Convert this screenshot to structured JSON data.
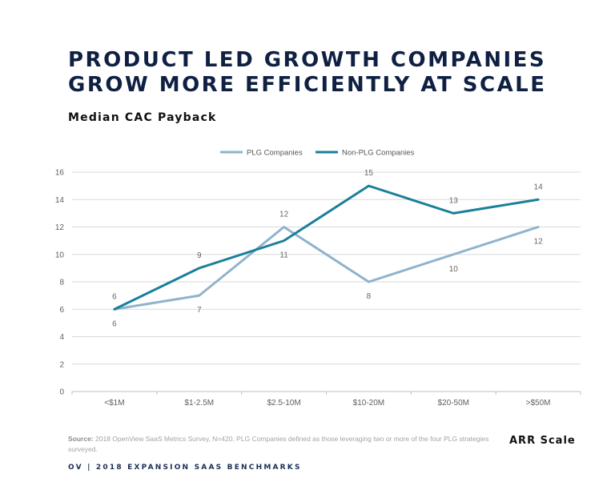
{
  "header": {
    "title_line1": "PRODUCT LED GROWTH COMPANIES",
    "title_line2": "GROW MORE EFFICIENTLY AT SCALE",
    "subtitle": "Median CAC Payback"
  },
  "chart_data": {
    "type": "line",
    "title": "Median CAC Payback",
    "xlabel": "ARR Scale",
    "ylabel": "",
    "categories": [
      "<$1M",
      "$1-2.5M",
      "$2.5-10M",
      "$10-20M",
      "$20-50M",
      ">$50M"
    ],
    "ylim": [
      0,
      16
    ],
    "yticks": [
      0,
      2,
      4,
      6,
      8,
      10,
      12,
      14,
      16
    ],
    "grid": true,
    "legend": "top-center",
    "series": [
      {
        "name": "PLG Companies",
        "color": "#8fb3cc",
        "values": [
          6,
          7,
          12,
          8,
          10,
          12
        ]
      },
      {
        "name": "Non-PLG Companies",
        "color": "#1a7f9b",
        "values": [
          6,
          9,
          11,
          15,
          13,
          14
        ]
      }
    ]
  },
  "source": {
    "label": "Source:",
    "text": "2018 OpenView SaaS Metrics Survey, N=420. PLG Companies defined as those leveraging two or more of the four PLG strategies surveyed."
  },
  "xaxis_title": "ARR Scale",
  "footer": "OV | 2018 EXPANSION SAAS BENCHMARKS"
}
